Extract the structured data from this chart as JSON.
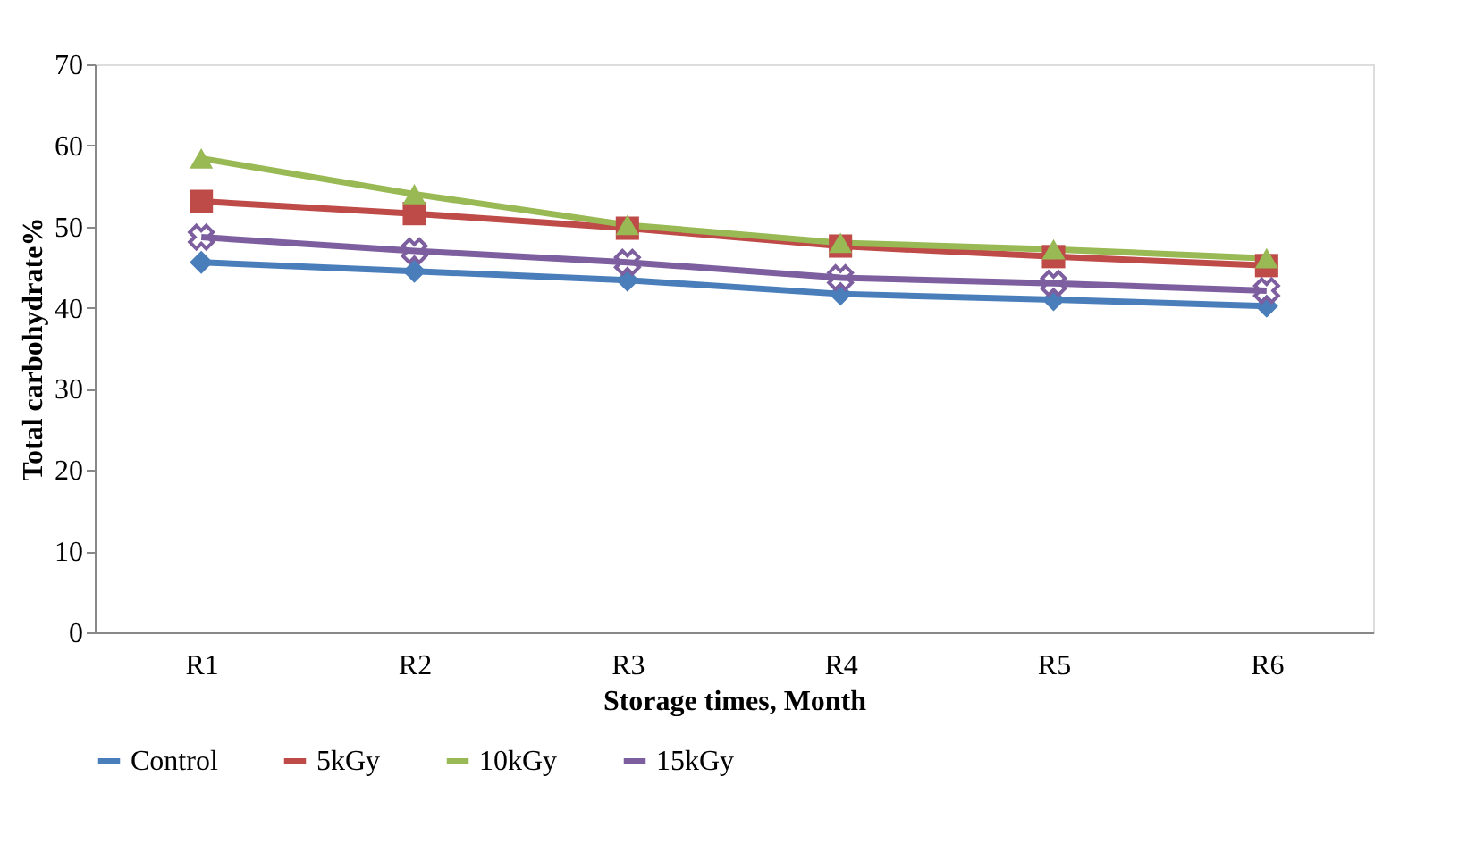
{
  "chart_data": {
    "type": "line",
    "xlabel": "Storage times, Month",
    "ylabel": "Total carbohydrate%",
    "categories": [
      "R1",
      "R2",
      "R3",
      "R4",
      "R5",
      "R6"
    ],
    "ylim": [
      0,
      70
    ],
    "yticks": [
      0,
      10,
      20,
      30,
      40,
      50,
      60,
      70
    ],
    "grid": false,
    "legend": "bottom",
    "series": [
      {
        "name": "Control",
        "color": "#4a7ebb",
        "marker": "diamond",
        "values": [
          45.6,
          44.5,
          43.4,
          41.7,
          41.0,
          40.2
        ]
      },
      {
        "name": "5kGy",
        "color": "#be4b48",
        "marker": "square",
        "values": [
          53.1,
          51.6,
          49.8,
          47.6,
          46.3,
          45.2
        ]
      },
      {
        "name": "10kGy",
        "color": "#98b954",
        "marker": "triangle",
        "values": [
          58.4,
          54.0,
          50.2,
          48.0,
          47.2,
          46.1
        ]
      },
      {
        "name": "15kGy",
        "color": "#7d5fa0",
        "marker": "cross",
        "values": [
          48.7,
          47.0,
          45.6,
          43.7,
          43.0,
          42.1
        ]
      }
    ]
  }
}
